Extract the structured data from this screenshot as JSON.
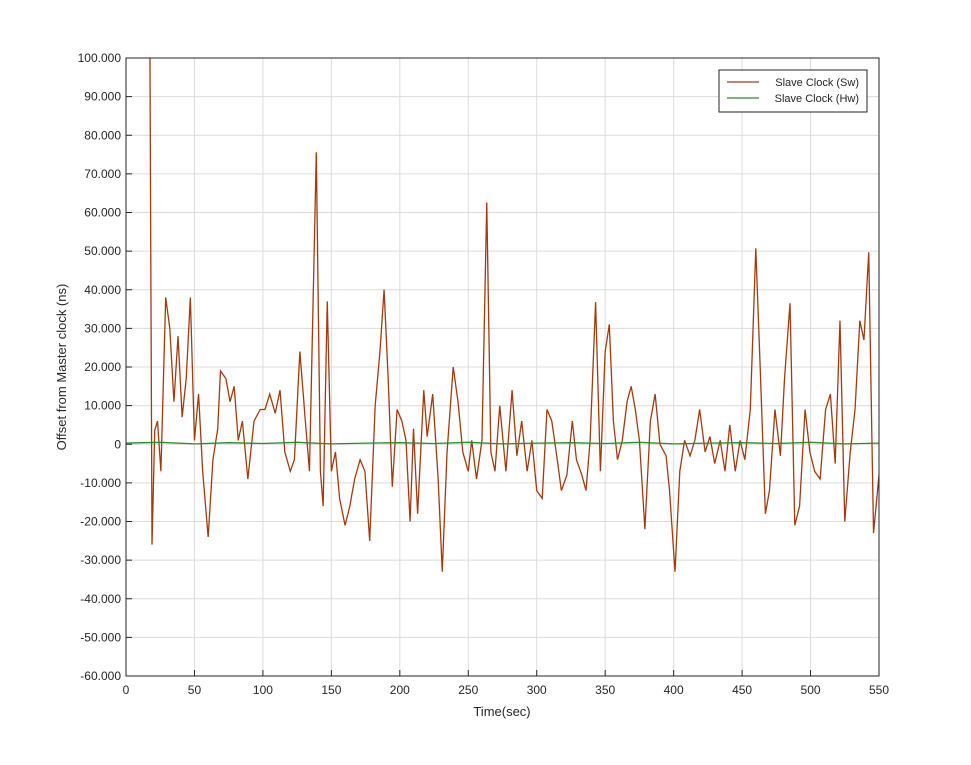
{
  "chart_data": {
    "type": "line",
    "xlabel": "Time(sec)",
    "ylabel": "Offset from Master clock (ns)",
    "xlim": [
      0,
      550
    ],
    "xticks": [
      0,
      50,
      100,
      150,
      200,
      250,
      300,
      350,
      400,
      450,
      500,
      550
    ],
    "ylim": [
      -60,
      100
    ],
    "yticks": [
      {
        "value": -60,
        "label": "-60.000"
      },
      {
        "value": -50,
        "label": "-50.000"
      },
      {
        "value": -40,
        "label": "-40.000"
      },
      {
        "value": -30,
        "label": "-30.000"
      },
      {
        "value": -20,
        "label": "-20.000"
      },
      {
        "value": -10,
        "label": "-10.000"
      },
      0,
      {
        "value": 10,
        "label": "10.000"
      },
      {
        "value": 20,
        "label": "20.000"
      },
      {
        "value": 30,
        "label": "30.000"
      },
      {
        "value": 40,
        "label": "40.000"
      },
      {
        "value": 50,
        "label": "50.000"
      },
      {
        "value": 60,
        "label": "60.000"
      },
      {
        "value": 70,
        "label": "70.000"
      },
      {
        "value": 80,
        "label": "80.000"
      },
      {
        "value": 90,
        "label": "90.000"
      },
      {
        "value": 100,
        "label": "100.000"
      }
    ],
    "grid": true,
    "legend": "northeast",
    "series": [
      {
        "name": "Slave Clock (Sw)",
        "color": "#a33a0e",
        "x": [
          17.5,
          19,
          21,
          23,
          25.5,
          29,
          32,
          35,
          38,
          41,
          44,
          47,
          50,
          53,
          56,
          60,
          63.5,
          67,
          69,
          73,
          76,
          79,
          82,
          85,
          89,
          93.5,
          98,
          101.5,
          105,
          109,
          112.5,
          116,
          120,
          123,
          127,
          131,
          134,
          139,
          142,
          144,
          147,
          150,
          153,
          156,
          160,
          163.5,
          167,
          171,
          174.5,
          178,
          182,
          185.5,
          188.5,
          191.5,
          194.5,
          198,
          201.5,
          204.5,
          207.5,
          210,
          213,
          217.5,
          220,
          224,
          228,
          231,
          234.5,
          239,
          242.5,
          246,
          250,
          252.5,
          256,
          260,
          263.5,
          266.5,
          269.5,
          273,
          277.5,
          282,
          285.5,
          289,
          293,
          296.5,
          300,
          304,
          307.5,
          311,
          315,
          318,
          322,
          326,
          329,
          333,
          336,
          339,
          343,
          346.5,
          350,
          353,
          356,
          359,
          362.5,
          366,
          369,
          372,
          375,
          379,
          383,
          386.5,
          390,
          394.5,
          397,
          401,
          404.5,
          408,
          412,
          415.5,
          419,
          423,
          426.5,
          430,
          434,
          437.5,
          441,
          445,
          448.5,
          452,
          456,
          460,
          463,
          467,
          470,
          474,
          478,
          481,
          485,
          488.5,
          492,
          496,
          499.5,
          503,
          507,
          511,
          514.5,
          518,
          521.5,
          525,
          529,
          532.5,
          536,
          539,
          542.5,
          546,
          550
        ],
        "values": [
          100,
          -26,
          3.6,
          6,
          -7,
          38,
          30,
          11,
          28,
          7,
          17,
          38,
          1,
          13,
          -7,
          -24,
          -4,
          4,
          19,
          17,
          11,
          15,
          1,
          6,
          -9,
          6,
          9,
          9,
          13,
          8,
          14,
          -2,
          -7,
          -4,
          24,
          6,
          -7,
          75.6,
          -7,
          -16,
          37,
          -7,
          -2,
          -14,
          -21,
          -16,
          -9,
          -4,
          -7,
          -25,
          10,
          24,
          40,
          17,
          -11,
          9,
          6,
          1,
          -20,
          4,
          -18,
          14,
          2,
          13,
          -9,
          -33,
          -2,
          20,
          11,
          -2,
          -7,
          1,
          -9,
          1,
          62.6,
          -2,
          -7,
          10,
          -7,
          14,
          -3,
          6,
          -7,
          1,
          -12,
          -14,
          9,
          6,
          -4,
          -12,
          -8,
          6,
          -4,
          -8,
          -12,
          1,
          36.8,
          -7,
          24,
          31,
          6,
          -4,
          1,
          11,
          15,
          9,
          1,
          -22,
          6,
          13,
          0,
          -3,
          -12,
          -33,
          -7,
          1,
          -3,
          1,
          9,
          -2,
          2,
          -5,
          1,
          -7,
          5,
          -7,
          1,
          -4,
          9,
          50.7,
          22,
          -18,
          -12,
          9,
          -3,
          17,
          36.5,
          -21,
          -16,
          9,
          -2,
          -7,
          -9,
          9,
          13,
          -5,
          32,
          -20,
          -2,
          9,
          32,
          27,
          49.7,
          -23,
          -8
        ]
      },
      {
        "name": "Slave Clock (Hw)",
        "color": "#2e8b2e",
        "x": [
          0,
          25,
          50,
          75,
          100,
          125,
          150,
          175,
          200,
          225,
          250,
          275,
          300,
          325,
          350,
          375,
          400,
          425,
          450,
          475,
          500,
          525,
          550
        ],
        "values": [
          0.3,
          0.5,
          0.1,
          0.4,
          0.2,
          0.5,
          0.1,
          0.3,
          0.4,
          0.2,
          0.5,
          0.1,
          0.3,
          0.4,
          0.2,
          0.5,
          0.1,
          0.3,
          0.4,
          0.2,
          0.5,
          0.1,
          0.3
        ]
      }
    ]
  }
}
